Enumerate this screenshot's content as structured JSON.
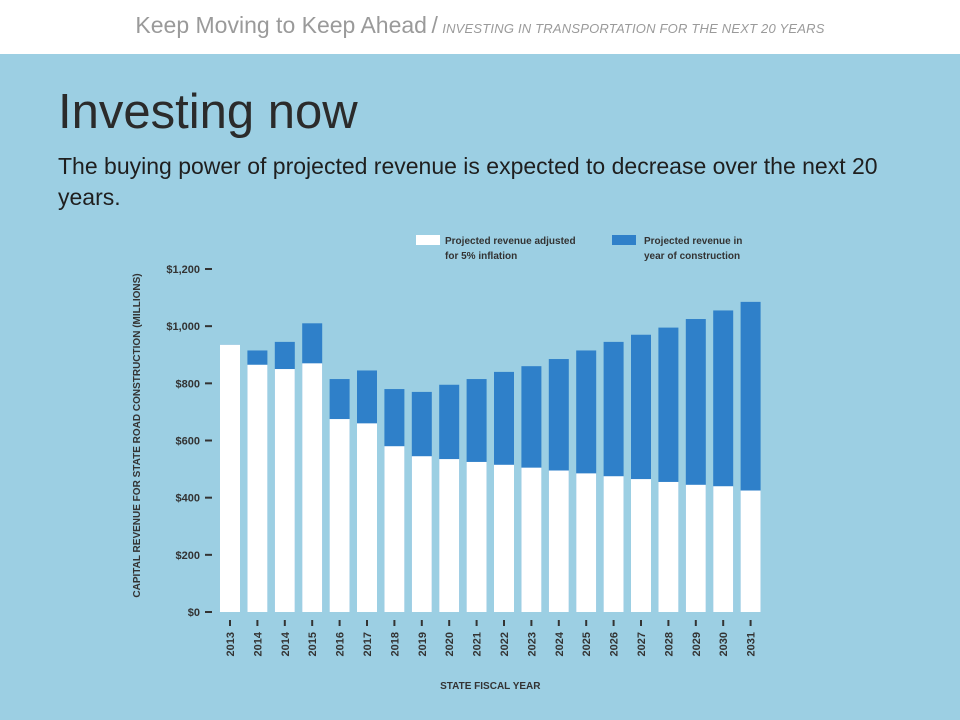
{
  "header": {
    "main": "Keep Moving to Keep Ahead",
    "separator": "/",
    "sub": "INVESTING IN TRANSPORTATION FOR THE NEXT 20 YEARS"
  },
  "slide": {
    "title": "Investing now",
    "subtitle": "The buying power of projected revenue is expected to decrease over the next 20 years."
  },
  "colors": {
    "background": "#9ccfe3",
    "adjusted": "#ffffff",
    "nominal": "#2f80c9"
  },
  "chart_data": {
    "type": "bar",
    "title": "",
    "xlabel": "STATE FISCAL YEAR",
    "ylabel": "CAPITAL REVENUE FOR STATE ROAD CONSTRUCTION (MILLIONS)",
    "ylim": [
      0,
      1200
    ],
    "yticks": [
      0,
      200,
      400,
      600,
      800,
      1000,
      1200
    ],
    "ytick_labels": [
      "$0",
      "$200",
      "$400",
      "$600",
      "$800",
      "$1,000",
      "$1,200"
    ],
    "categories": [
      "2013",
      "2014",
      "2014",
      "2015",
      "2016",
      "2017",
      "2018",
      "2019",
      "2020",
      "2021",
      "2022",
      "2023",
      "2024",
      "2025",
      "2026",
      "2027",
      "2028",
      "2029",
      "2030",
      "2031"
    ],
    "legend_position": "top",
    "series": [
      {
        "name": "Projected revenue adjusted for 5% inflation",
        "legend_lines": [
          "Projected revenue adjusted",
          "for 5% inflation"
        ],
        "color": "#ffffff",
        "values": [
          935,
          865,
          850,
          870,
          675,
          660,
          580,
          545,
          535,
          525,
          515,
          505,
          495,
          485,
          475,
          465,
          455,
          445,
          440,
          425
        ]
      },
      {
        "name": "Projected revenue in year of construction",
        "legend_lines": [
          "Projected revenue in",
          "year of construction"
        ],
        "color": "#2f80c9",
        "values": [
          935,
          915,
          945,
          1010,
          815,
          845,
          780,
          770,
          795,
          815,
          840,
          860,
          885,
          915,
          945,
          970,
          995,
          1025,
          1055,
          1085
        ]
      }
    ]
  }
}
